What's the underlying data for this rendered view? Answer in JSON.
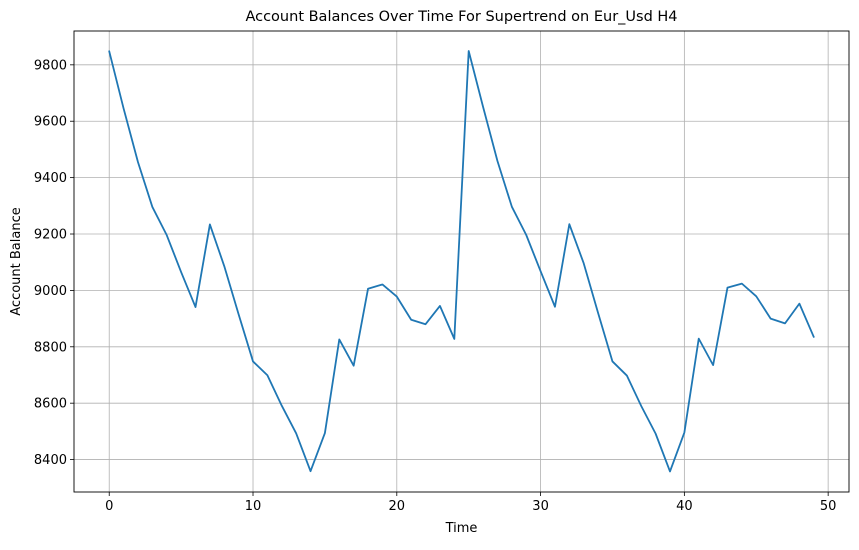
{
  "chart_data": {
    "type": "line",
    "title": "Account Balances Over Time For Supertrend on Eur_Usd H4",
    "xlabel": "Time",
    "ylabel": "Account Balance",
    "xlim": [
      -2.45,
      51.45
    ],
    "ylim": [
      8285,
      9920
    ],
    "xticks": [
      0,
      10,
      20,
      30,
      40,
      50
    ],
    "xtick_labels": [
      "0",
      "10",
      "20",
      "30",
      "40",
      "50"
    ],
    "yticks": [
      8400,
      8600,
      8800,
      9000,
      9200,
      9400,
      9600,
      9800
    ],
    "ytick_labels": [
      "8400",
      "8600",
      "8800",
      "9000",
      "9200",
      "9400",
      "9600",
      "9800"
    ],
    "grid": true,
    "legend": "none",
    "series": [
      {
        "color": "#1f77b4",
        "x": [
          0,
          1,
          2,
          3,
          4,
          5,
          6,
          7,
          8,
          9,
          10,
          11,
          12,
          13,
          14,
          15,
          16,
          17,
          18,
          19,
          20,
          21,
          22,
          23,
          24,
          25,
          26,
          27,
          28,
          29,
          30,
          31,
          32,
          33,
          34,
          35,
          36,
          37,
          38,
          39,
          40,
          41,
          42,
          43,
          44,
          45,
          46,
          47,
          48,
          49
        ],
        "y": [
          9848,
          9645,
          9455,
          9296,
          9196,
          9065,
          8941,
          9234,
          9086,
          8915,
          8748,
          8699,
          8591,
          8493,
          8359,
          8494,
          8826,
          8733,
          9006,
          9021,
          8978,
          8896,
          8880,
          8945,
          8828,
          9849,
          9651,
          9459,
          9297,
          9197,
          9068,
          8942,
          9235,
          9096,
          8920,
          8748,
          8698,
          8590,
          8492,
          8358,
          8496,
          8829,
          8735,
          9010,
          9024,
          8979,
          8900,
          8883,
          8953,
          8835
        ]
      }
    ]
  }
}
